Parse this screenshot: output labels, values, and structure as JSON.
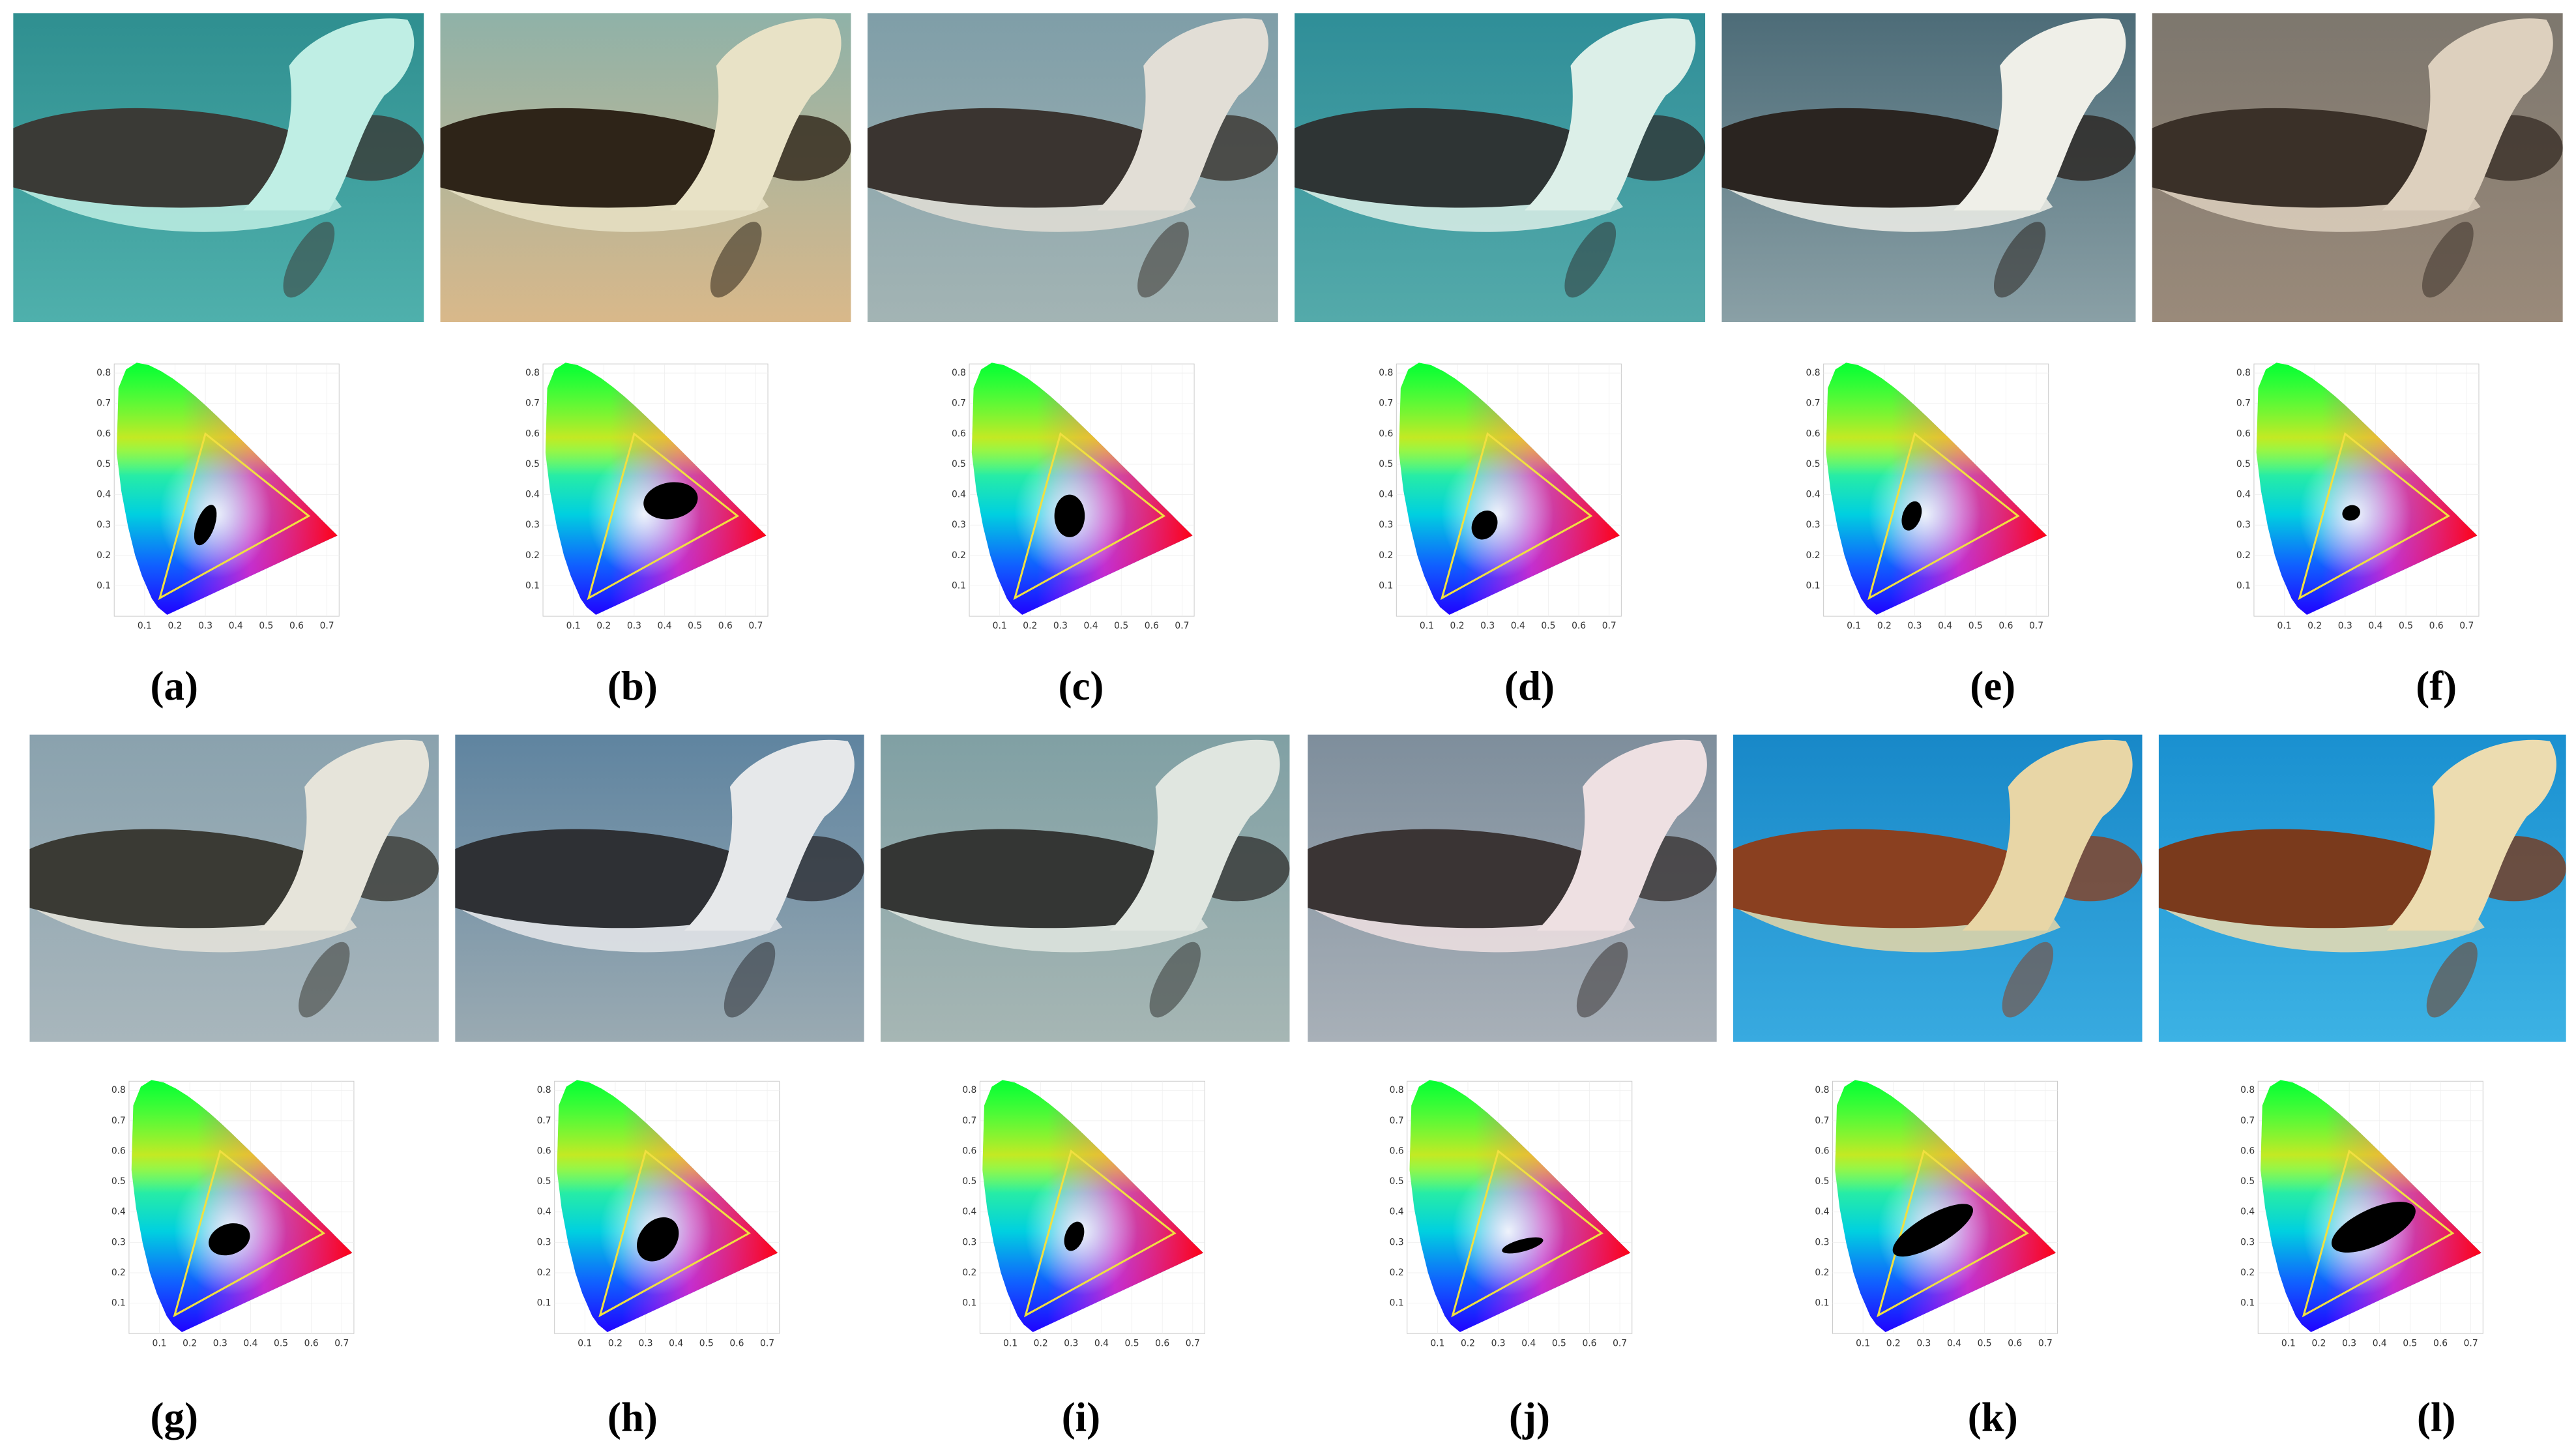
{
  "panels": [
    {
      "label": "(a)"
    },
    {
      "label": "(b)"
    },
    {
      "label": "(c)"
    },
    {
      "label": "(d)"
    },
    {
      "label": "(e)"
    },
    {
      "label": "(f)"
    },
    {
      "label": "(g)"
    },
    {
      "label": "(h)"
    },
    {
      "label": "(i)"
    },
    {
      "label": "(j)"
    },
    {
      "label": "(k)"
    },
    {
      "label": "(l)"
    }
  ],
  "diagram": {
    "xticks": [
      0.1,
      0.2,
      0.3,
      0.4,
      0.5,
      0.6,
      0.7
    ],
    "yticks": [
      0.1,
      0.2,
      0.3,
      0.4,
      0.5,
      0.6,
      0.7,
      0.8
    ]
  }
}
